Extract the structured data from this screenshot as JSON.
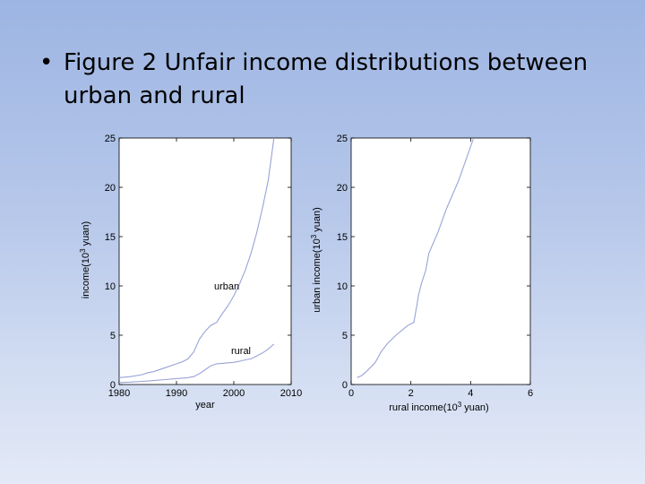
{
  "slide": {
    "bullet": "•",
    "title": "Figure 2 Unfair income distributions between urban and rural"
  },
  "colors": {
    "line": "#9aa3d8",
    "axis": "#000000"
  },
  "chart_data": [
    {
      "type": "line",
      "xlabel": "year",
      "ylabel": "income(10^3 yuan)",
      "xlim": [
        1980,
        2010
      ],
      "ylim": [
        0,
        25
      ],
      "xticks": [
        "1980",
        "1990",
        "2000",
        "2010"
      ],
      "yticks": [
        "0",
        "5",
        "10",
        "15",
        "20",
        "25"
      ],
      "grid": false,
      "annotations": [
        "urban",
        "rural"
      ],
      "series": [
        {
          "name": "urban",
          "x": [
            1980,
            1982,
            1984,
            1985,
            1986,
            1988,
            1990,
            1991,
            1992,
            1993,
            1994,
            1995,
            1996,
            1997,
            1998,
            1999,
            2000,
            2001,
            2002,
            2003,
            2004,
            2005,
            2006,
            2007
          ],
          "y": [
            0.7,
            0.8,
            1.0,
            1.2,
            1.3,
            1.7,
            2.1,
            2.3,
            2.6,
            3.3,
            4.6,
            5.4,
            6.0,
            6.3,
            7.2,
            8.0,
            9.0,
            10.2,
            11.6,
            13.3,
            15.4,
            17.9,
            20.7,
            25.0
          ]
        },
        {
          "name": "rural",
          "x": [
            1980,
            1982,
            1984,
            1985,
            1986,
            1988,
            1990,
            1991,
            1992,
            1993,
            1994,
            1995,
            1996,
            1997,
            1998,
            1999,
            2000,
            2001,
            2002,
            2003,
            2004,
            2005,
            2006,
            2007
          ],
          "y": [
            0.2,
            0.25,
            0.32,
            0.35,
            0.4,
            0.5,
            0.6,
            0.65,
            0.7,
            0.8,
            1.1,
            1.5,
            1.9,
            2.1,
            2.15,
            2.2,
            2.25,
            2.35,
            2.5,
            2.6,
            2.9,
            3.2,
            3.6,
            4.1
          ]
        }
      ]
    },
    {
      "type": "line",
      "xlabel": "rural income(10^3 yuan)",
      "ylabel": "urban income(10^3 yuan)",
      "xlim": [
        0,
        6
      ],
      "ylim": [
        0,
        25
      ],
      "xticks": [
        "0",
        "2",
        "4",
        "6"
      ],
      "yticks": [
        "0",
        "5",
        "10",
        "15",
        "20",
        "25"
      ],
      "grid": false,
      "series": [
        {
          "x": [
            0.2,
            0.35,
            0.5,
            0.8,
            1.0,
            1.2,
            1.5,
            1.9,
            2.1,
            2.15,
            2.2,
            2.25,
            2.35,
            2.5,
            2.6,
            2.9,
            3.2,
            3.6,
            4.1
          ],
          "y": [
            0.7,
            0.9,
            1.3,
            2.2,
            3.3,
            4.1,
            5.0,
            6.0,
            6.3,
            7.2,
            8.0,
            9.0,
            10.2,
            11.6,
            13.3,
            15.4,
            17.9,
            20.7,
            25.0
          ]
        }
      ]
    }
  ]
}
